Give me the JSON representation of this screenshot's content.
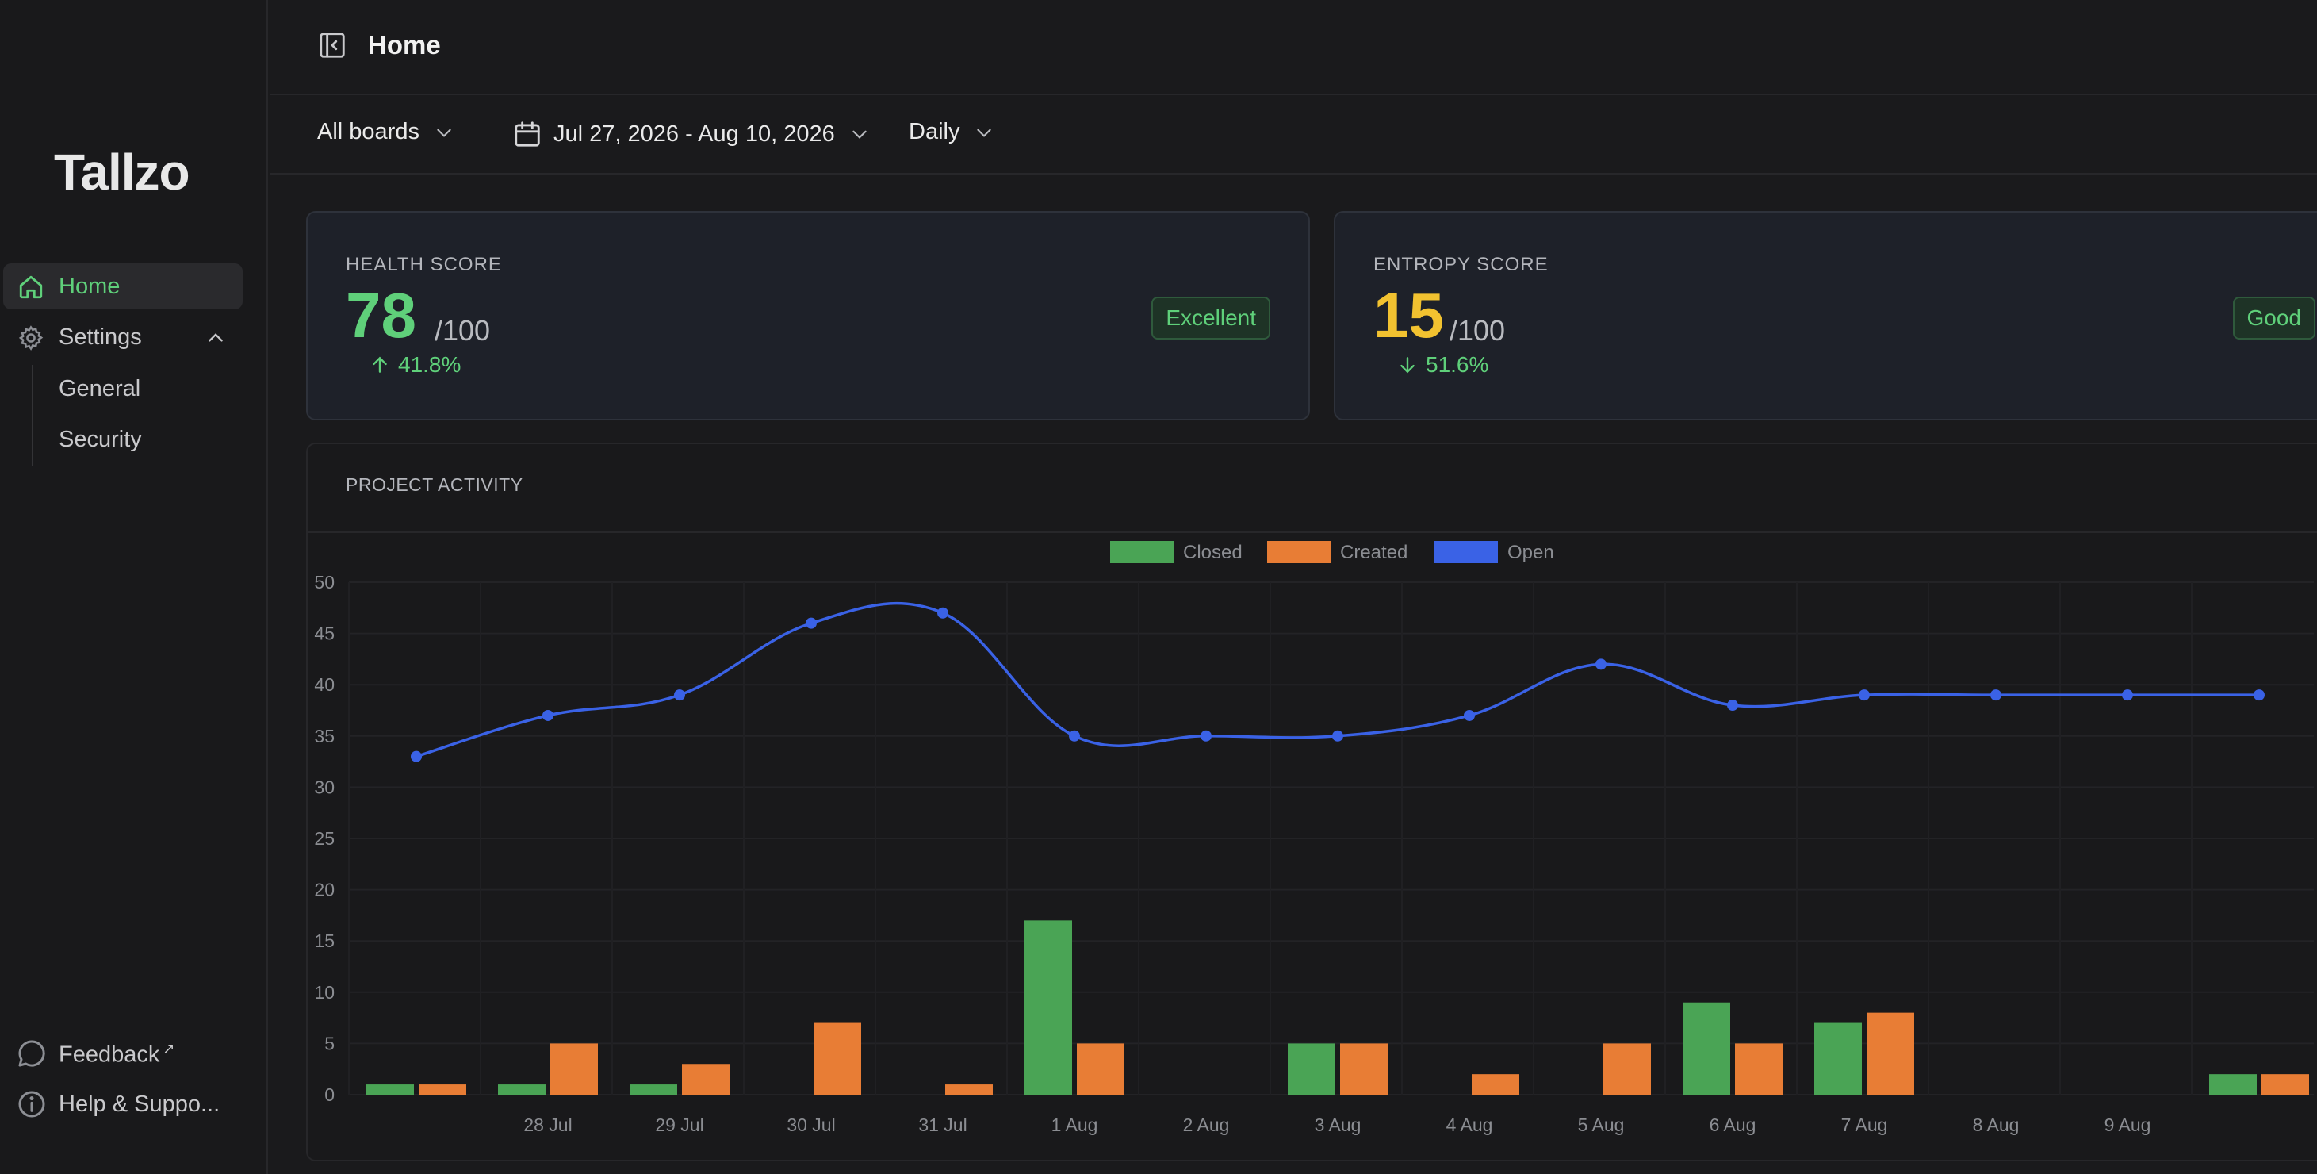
{
  "sidebar": {
    "logo": "Tallzo",
    "nav": {
      "home": "Home",
      "settings": "Settings",
      "general": "General",
      "security": "Security"
    },
    "footer": {
      "feedback": "Feedback",
      "feedback_mark": "↗",
      "help": "Help & Suppo..."
    }
  },
  "header": {
    "title": "Home"
  },
  "filters": {
    "boards": "All boards",
    "date_range": "Jul 27, 2026 - Aug 10, 2026",
    "interval": "Daily"
  },
  "health": {
    "caption": "HEALTH SCORE",
    "value": "78",
    "out_of": "/100",
    "delta": "41.8%",
    "delta_dir": "up",
    "badge": "Excellent",
    "color": "#5fd07a"
  },
  "entropy": {
    "caption": "ENTROPY SCORE",
    "value": "15",
    "out_of": "/100",
    "delta": "51.6%",
    "delta_dir": "down",
    "badge": "Good",
    "color": "#f2c230"
  },
  "activity": {
    "caption": "PROJECT ACTIVITY"
  },
  "chart_data": {
    "type": "bar",
    "categories": [
      "",
      "28 Jul",
      "29 Jul",
      "30 Jul",
      "31 Jul",
      "1 Aug",
      "2 Aug",
      "3 Aug",
      "4 Aug",
      "5 Aug",
      "6 Aug",
      "7 Aug",
      "8 Aug",
      "9 Aug",
      ""
    ],
    "series": [
      {
        "name": "Closed",
        "type": "bar",
        "color": "#4aa455",
        "values": [
          1,
          1,
          1,
          0,
          0,
          17,
          0,
          5,
          0,
          0,
          9,
          7,
          0,
          0,
          2
        ]
      },
      {
        "name": "Created",
        "type": "bar",
        "color": "#e87d35",
        "values": [
          1,
          5,
          3,
          7,
          1,
          5,
          0,
          5,
          2,
          5,
          5,
          8,
          0,
          0,
          2
        ]
      },
      {
        "name": "Open",
        "type": "line",
        "color": "#3a62e6",
        "values": [
          33,
          37,
          39,
          46,
          47,
          35,
          35,
          35,
          37,
          42,
          38,
          39,
          39,
          39,
          39
        ]
      }
    ],
    "y_ticks": [
      0,
      5,
      10,
      15,
      20,
      25,
      30,
      35,
      40,
      45,
      50
    ],
    "ylim": [
      0,
      50
    ],
    "legend_position": "top-center",
    "grid": true
  }
}
